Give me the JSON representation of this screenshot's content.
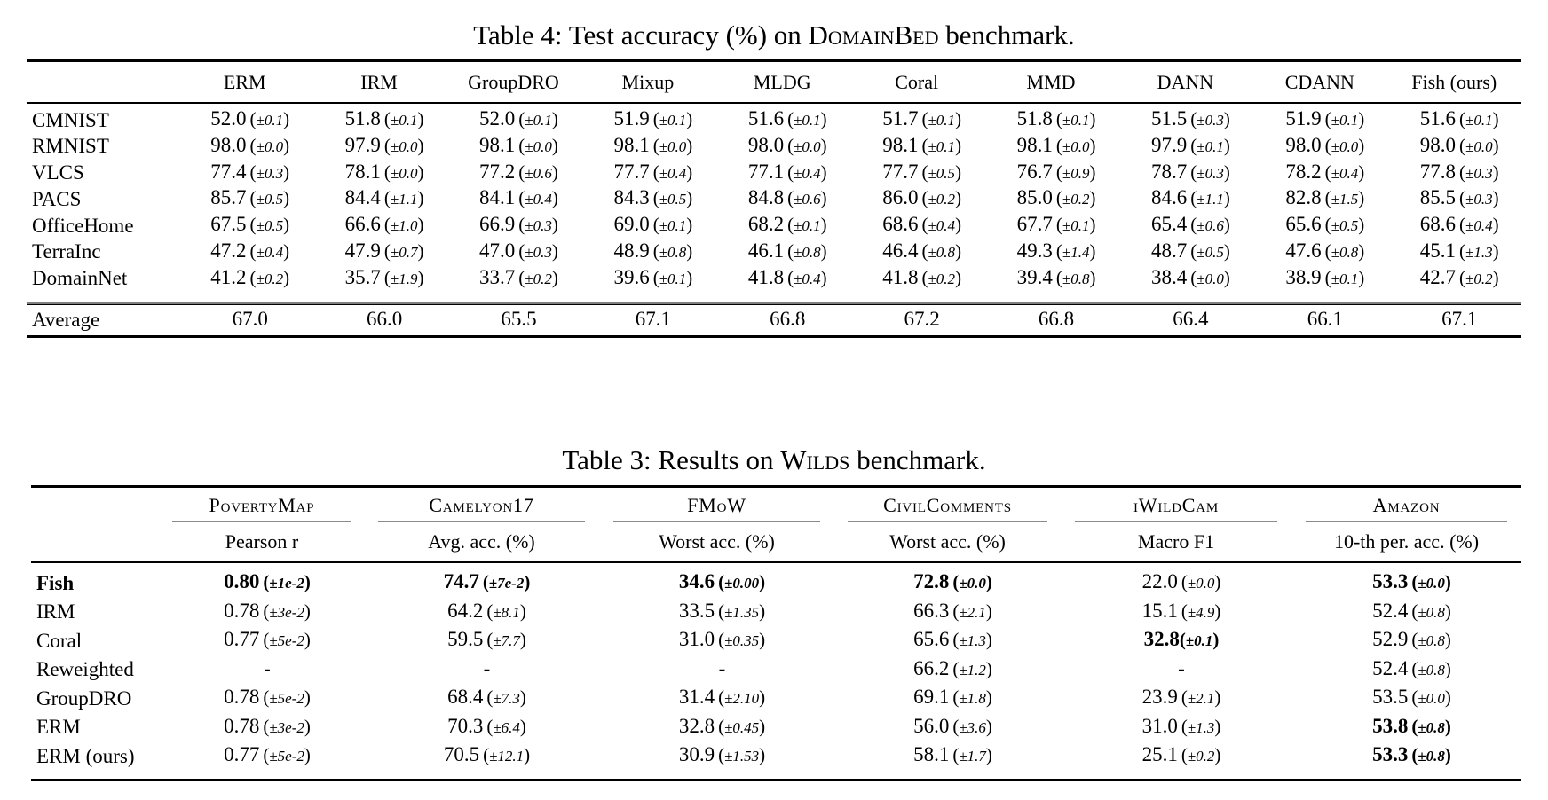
{
  "colors": {
    "background": "#ffffff",
    "text": "#000000",
    "rule": "#000000",
    "cmidrule": "#8a8a8a"
  },
  "table4": {
    "caption": {
      "prefix": "Table 4: Test accuracy (%) on ",
      "smallcaps": "DomainBed",
      "suffix": " benchmark."
    },
    "header": [
      "ERM",
      "IRM",
      "GroupDRO",
      "Mixup",
      "MLDG",
      "Coral",
      "MMD",
      "DANN",
      "CDANN",
      "Fish (ours)"
    ],
    "rows": [
      {
        "label": "CMNIST",
        "cells": [
          {
            "v": "52.0",
            "e": "±0.1"
          },
          {
            "v": "51.8",
            "e": "±0.1"
          },
          {
            "v": "52.0",
            "e": "±0.1"
          },
          {
            "v": "51.9",
            "e": "±0.1"
          },
          {
            "v": "51.6",
            "e": "±0.1"
          },
          {
            "v": "51.7",
            "e": "±0.1"
          },
          {
            "v": "51.8",
            "e": "±0.1"
          },
          {
            "v": "51.5",
            "e": "±0.3"
          },
          {
            "v": "51.9",
            "e": "±0.1"
          },
          {
            "v": "51.6",
            "e": "±0.1"
          }
        ]
      },
      {
        "label": "RMNIST",
        "cells": [
          {
            "v": "98.0",
            "e": "±0.0"
          },
          {
            "v": "97.9",
            "e": "±0.0"
          },
          {
            "v": "98.1",
            "e": "±0.0"
          },
          {
            "v": "98.1",
            "e": "±0.0"
          },
          {
            "v": "98.0",
            "e": "±0.0"
          },
          {
            "v": "98.1",
            "e": "±0.1"
          },
          {
            "v": "98.1",
            "e": "±0.0"
          },
          {
            "v": "97.9",
            "e": "±0.1"
          },
          {
            "v": "98.0",
            "e": "±0.0"
          },
          {
            "v": "98.0",
            "e": "±0.0"
          }
        ]
      },
      {
        "label": "VLCS",
        "cells": [
          {
            "v": "77.4",
            "e": "±0.3"
          },
          {
            "v": "78.1",
            "e": "±0.0"
          },
          {
            "v": "77.2",
            "e": "±0.6"
          },
          {
            "v": "77.7",
            "e": "±0.4"
          },
          {
            "v": "77.1",
            "e": "±0.4"
          },
          {
            "v": "77.7",
            "e": "±0.5"
          },
          {
            "v": "76.7",
            "e": "±0.9"
          },
          {
            "v": "78.7",
            "e": "±0.3"
          },
          {
            "v": "78.2",
            "e": "±0.4"
          },
          {
            "v": "77.8",
            "e": "±0.3"
          }
        ]
      },
      {
        "label": "PACS",
        "cells": [
          {
            "v": "85.7",
            "e": "±0.5"
          },
          {
            "v": "84.4",
            "e": "±1.1"
          },
          {
            "v": "84.1",
            "e": "±0.4"
          },
          {
            "v": "84.3",
            "e": "±0.5"
          },
          {
            "v": "84.8",
            "e": "±0.6"
          },
          {
            "v": "86.0",
            "e": "±0.2"
          },
          {
            "v": "85.0",
            "e": "±0.2"
          },
          {
            "v": "84.6",
            "e": "±1.1"
          },
          {
            "v": "82.8",
            "e": "±1.5"
          },
          {
            "v": "85.5",
            "e": "±0.3"
          }
        ]
      },
      {
        "label": "OfficeHome",
        "cells": [
          {
            "v": "67.5",
            "e": "±0.5"
          },
          {
            "v": "66.6",
            "e": "±1.0"
          },
          {
            "v": "66.9",
            "e": "±0.3"
          },
          {
            "v": "69.0",
            "e": "±0.1"
          },
          {
            "v": "68.2",
            "e": "±0.1"
          },
          {
            "v": "68.6",
            "e": "±0.4"
          },
          {
            "v": "67.7",
            "e": "±0.1"
          },
          {
            "v": "65.4",
            "e": "±0.6"
          },
          {
            "v": "65.6",
            "e": "±0.5"
          },
          {
            "v": "68.6",
            "e": "±0.4"
          }
        ]
      },
      {
        "label": "TerraInc",
        "cells": [
          {
            "v": "47.2",
            "e": "±0.4"
          },
          {
            "v": "47.9",
            "e": "±0.7"
          },
          {
            "v": "47.0",
            "e": "±0.3"
          },
          {
            "v": "48.9",
            "e": "±0.8"
          },
          {
            "v": "46.1",
            "e": "±0.8"
          },
          {
            "v": "46.4",
            "e": "±0.8"
          },
          {
            "v": "49.3",
            "e": "±1.4"
          },
          {
            "v": "48.7",
            "e": "±0.5"
          },
          {
            "v": "47.6",
            "e": "±0.8"
          },
          {
            "v": "45.1",
            "e": "±1.3"
          }
        ]
      },
      {
        "label": "DomainNet",
        "cells": [
          {
            "v": "41.2",
            "e": "±0.2"
          },
          {
            "v": "35.7",
            "e": "±1.9"
          },
          {
            "v": "33.7",
            "e": "±0.2"
          },
          {
            "v": "39.6",
            "e": "±0.1"
          },
          {
            "v": "41.8",
            "e": "±0.4"
          },
          {
            "v": "41.8",
            "e": "±0.2"
          },
          {
            "v": "39.4",
            "e": "±0.8"
          },
          {
            "v": "38.4",
            "e": "±0.0"
          },
          {
            "v": "38.9",
            "e": "±0.1"
          },
          {
            "v": "42.7",
            "e": "±0.2"
          }
        ]
      }
    ],
    "footer": {
      "label": "Average",
      "cells": [
        {
          "v": "67.0"
        },
        {
          "v": "66.0"
        },
        {
          "v": "65.5"
        },
        {
          "v": "67.1"
        },
        {
          "v": "66.8"
        },
        {
          "v": "67.2"
        },
        {
          "v": "66.8"
        },
        {
          "v": "66.4"
        },
        {
          "v": "66.1"
        },
        {
          "v": "67.1"
        }
      ]
    }
  },
  "table3": {
    "caption": {
      "prefix": "Table 3: Results on ",
      "smallcaps": "Wilds",
      "suffix": " benchmark."
    },
    "groups": [
      {
        "name": "PovertyMap",
        "metric": "Pearson r"
      },
      {
        "name": "Camelyon17",
        "metric": "Avg. acc. (%)"
      },
      {
        "name": "FMoW",
        "metric": "Worst acc. (%)"
      },
      {
        "name": "CivilComments",
        "metric": "Worst acc. (%)"
      },
      {
        "name": "iWildCam",
        "metric": "Macro F1"
      },
      {
        "name": "Amazon",
        "metric": "10-th per. acc. (%)"
      }
    ],
    "rows": [
      {
        "label": "Fish",
        "bold_label": true,
        "cells": [
          {
            "v": "0.80",
            "e": "±1e-2",
            "b": true
          },
          {
            "v": "74.7",
            "e": "±7e-2",
            "b": true
          },
          {
            "v": "34.6",
            "e": "±0.00",
            "b": true
          },
          {
            "v": "72.8",
            "e": "±0.0",
            "b": true
          },
          {
            "v": "22.0",
            "e": "±0.0"
          },
          {
            "v": "53.3",
            "e": "±0.0",
            "b": true
          }
        ]
      },
      {
        "label": "IRM",
        "cells": [
          {
            "v": "0.78",
            "e": "±3e-2"
          },
          {
            "v": "64.2",
            "e": "±8.1"
          },
          {
            "v": "33.5",
            "e": "±1.35"
          },
          {
            "v": "66.3",
            "e": "±2.1"
          },
          {
            "v": "15.1",
            "e": "±4.9"
          },
          {
            "v": "52.4",
            "e": "±0.8"
          }
        ]
      },
      {
        "label": "Coral",
        "cells": [
          {
            "v": "0.77",
            "e": "±5e-2"
          },
          {
            "v": "59.5",
            "e": "±7.7"
          },
          {
            "v": "31.0",
            "e": "±0.35"
          },
          {
            "v": "65.6",
            "e": "±1.3"
          },
          {
            "v": "32.8",
            "e": "±0.1",
            "b": true,
            "ns": true
          },
          {
            "v": "52.9",
            "e": "±0.8"
          }
        ]
      },
      {
        "label": "Reweighted",
        "cells": [
          {
            "v": "-"
          },
          {
            "v": "-"
          },
          {
            "v": "-"
          },
          {
            "v": "66.2",
            "e": "±1.2"
          },
          {
            "v": "-"
          },
          {
            "v": "52.4",
            "e": "±0.8"
          }
        ]
      },
      {
        "label": "GroupDRO",
        "cells": [
          {
            "v": "0.78",
            "e": "±5e-2"
          },
          {
            "v": "68.4",
            "e": "±7.3"
          },
          {
            "v": "31.4",
            "e": "±2.10"
          },
          {
            "v": "69.1",
            "e": "±1.8"
          },
          {
            "v": "23.9",
            "e": "±2.1"
          },
          {
            "v": "53.5",
            "e": "±0.0"
          }
        ]
      },
      {
        "label": "ERM",
        "cells": [
          {
            "v": "0.78",
            "e": "±3e-2"
          },
          {
            "v": "70.3",
            "e": "±6.4"
          },
          {
            "v": "32.8",
            "e": "±0.45"
          },
          {
            "v": "56.0",
            "e": "±3.6"
          },
          {
            "v": "31.0",
            "e": "±1.3"
          },
          {
            "v": "53.8",
            "e": "±0.8",
            "b": true
          }
        ]
      },
      {
        "label": "ERM (ours)",
        "cells": [
          {
            "v": "0.77",
            "e": "±5e-2"
          },
          {
            "v": "70.5",
            "e": "±12.1"
          },
          {
            "v": "30.9",
            "e": "±1.53"
          },
          {
            "v": "58.1",
            "e": "±1.7"
          },
          {
            "v": "25.1",
            "e": "±0.2"
          },
          {
            "v": "53.3",
            "e": "±0.8",
            "b": true
          }
        ]
      }
    ]
  }
}
